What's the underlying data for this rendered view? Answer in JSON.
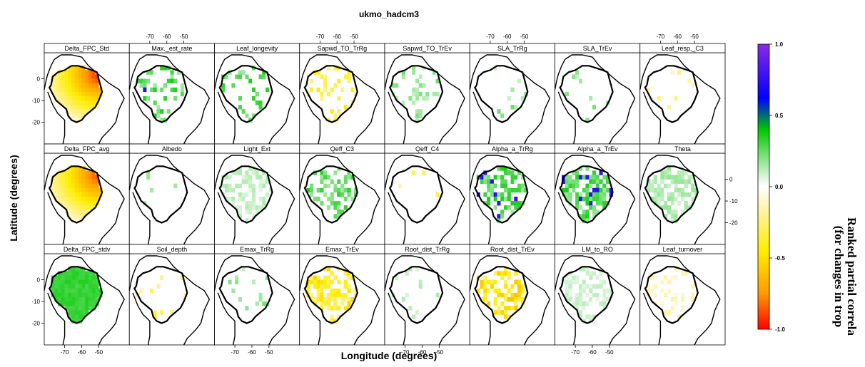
{
  "figure": {
    "title": "ukmo_hadcm3",
    "xlabel": "Longitude (degrees)",
    "ylabel": "Latitude (degrees)",
    "colorbar_title_line1": "Ranked partial correla",
    "colorbar_title_line2": "(for changes in trop"
  },
  "chart_data": {
    "type": "heatmap",
    "title": "ukmo_hadcm3",
    "xlabel": "Longitude (degrees)",
    "ylabel": "Latitude (degrees)",
    "grid": false,
    "layout": {
      "rows": 3,
      "cols": 8
    },
    "x_ticks": [
      "-70",
      "-60",
      "-50"
    ],
    "y_ticks": [
      "0",
      "-10",
      "-20"
    ],
    "colorbar": {
      "range": [
        -1.0,
        1.0
      ],
      "tick_labels": [
        "1.0",
        "0.5",
        "0.0",
        "-0.5",
        "-1.0"
      ],
      "stops": [
        {
          "value": 1.0,
          "color": "#8a2be2"
        },
        {
          "value": 0.62,
          "color": "#0000ff"
        },
        {
          "value": 0.4,
          "color": "#00c800"
        },
        {
          "value": 0.05,
          "color": "#e8f7e8"
        },
        {
          "value": 0.0,
          "color": "#ffffff"
        },
        {
          "value": -0.15,
          "color": "#fff3b0"
        },
        {
          "value": -0.45,
          "color": "#ffee00"
        },
        {
          "value": -0.75,
          "color": "#ff9900"
        },
        {
          "value": -1.0,
          "color": "#ff0000"
        }
      ]
    },
    "panels": [
      {
        "name": "Delta_FPC_Std",
        "pattern": "gradient_ne",
        "max_value": -0.95
      },
      {
        "name": "Max._est_rate",
        "pattern": "patches",
        "value": 0.3,
        "coverage": 0.35,
        "accent": 0.75
      },
      {
        "name": "Leaf_longevity",
        "pattern": "patches",
        "value": 0.3,
        "coverage": 0.25
      },
      {
        "name": "Sapwd_TO_TrRg",
        "pattern": "patches",
        "value": -0.4,
        "coverage": 0.25
      },
      {
        "name": "Sapwd_TO_TrEv",
        "pattern": "patches",
        "value": 0.2,
        "coverage": 0.22
      },
      {
        "name": "SLA_TrRg",
        "pattern": "patches",
        "value": 0.2,
        "coverage": 0.07
      },
      {
        "name": "SLA_TrEv",
        "pattern": "patches",
        "value": 0.2,
        "coverage": 0.09
      },
      {
        "name": "Leaf_resp._C3",
        "pattern": "patches",
        "value": -0.2,
        "coverage": 0.05
      },
      {
        "name": "Delta_FPC_avg",
        "pattern": "gradient_ne",
        "max_value": -0.9
      },
      {
        "name": "Albedo",
        "pattern": "patches",
        "value": 0.2,
        "coverage": 0.03
      },
      {
        "name": "Light_Ext",
        "pattern": "patches",
        "value": 0.12,
        "coverage": 0.55
      },
      {
        "name": "Qeff_C3",
        "pattern": "patches",
        "value": 0.3,
        "coverage": 0.5
      },
      {
        "name": "Qeff_C4",
        "pattern": "patches",
        "value": -0.3,
        "coverage": 0.05
      },
      {
        "name": "Alpha_a_TrRg",
        "pattern": "patches",
        "value": 0.3,
        "coverage": 0.5,
        "accent": 0.75
      },
      {
        "name": "Alpha_a_TrEv",
        "pattern": "patches",
        "value": 0.3,
        "coverage": 0.7,
        "accent": 0.75
      },
      {
        "name": "Theta",
        "pattern": "patches",
        "value": 0.15,
        "coverage": 0.6
      },
      {
        "name": "Delta_FPC_stdv",
        "pattern": "uniform",
        "value": 0.32
      },
      {
        "name": "Soil_depth",
        "pattern": "patches",
        "value": -0.3,
        "coverage": 0.12
      },
      {
        "name": "Emax_TrRg",
        "pattern": "patches",
        "value": 0.2,
        "coverage": 0.15
      },
      {
        "name": "Emax_TrEv",
        "pattern": "patches",
        "value": -0.45,
        "coverage": 0.5
      },
      {
        "name": "Root_dist_TrRg",
        "pattern": "patches",
        "value": 0.12,
        "coverage": 0.07
      },
      {
        "name": "Root_dist_TrEv",
        "pattern": "patches",
        "value": -0.5,
        "coverage": 0.5
      },
      {
        "name": "LM_to_RO",
        "pattern": "patches",
        "value": 0.1,
        "coverage": 0.55
      },
      {
        "name": "Leaf_turnover",
        "pattern": "patches",
        "value": -0.15,
        "coverage": 0.2
      }
    ]
  }
}
